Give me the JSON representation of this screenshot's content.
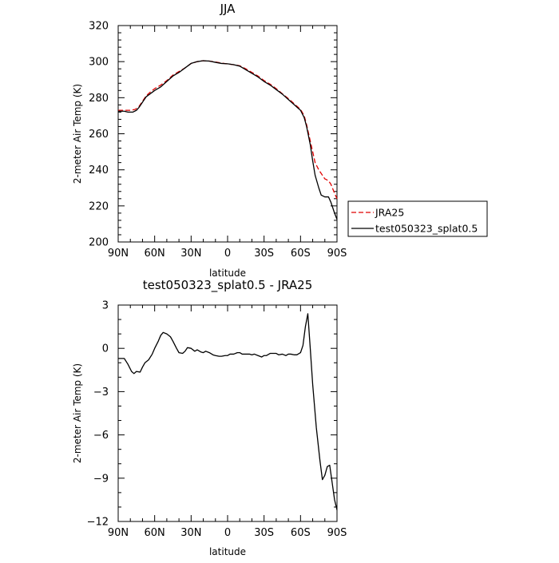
{
  "chart_data": [
    {
      "type": "line",
      "title": "JJA",
      "xlabel": "latitude",
      "ylabel": "2-meter Air Temp (K)",
      "xlim": [
        90,
        -90
      ],
      "ylim": [
        200,
        320
      ],
      "x_ticks": [
        90,
        60,
        30,
        0,
        -30,
        -60,
        -90
      ],
      "x_tick_labels": [
        "90N",
        "60N",
        "30N",
        "0",
        "30S",
        "60S",
        "90S"
      ],
      "y_ticks": [
        200,
        220,
        240,
        260,
        280,
        300,
        320
      ],
      "y_tick_labels": [
        "200",
        "220",
        "240",
        "260",
        "280",
        "300",
        "320"
      ],
      "grid": false,
      "legend_position": "outside-right",
      "series": [
        {
          "name": "JRA25",
          "color": "#e00000",
          "dash": "dashed",
          "points": [
            [
              90,
              273
            ],
            [
              85,
              273
            ],
            [
              80,
              273
            ],
            [
              76,
              273.5
            ],
            [
              73,
              275
            ],
            [
              70,
              278
            ],
            [
              67,
              281
            ],
            [
              63,
              283.5
            ],
            [
              60,
              285
            ],
            [
              55,
              287
            ],
            [
              50,
              289.5
            ],
            [
              45,
              292.5
            ],
            [
              40,
              294.5
            ],
            [
              35,
              296.5
            ],
            [
              30,
              299
            ],
            [
              25,
              300
            ],
            [
              20,
              300.5
            ],
            [
              15,
              300.3
            ],
            [
              10,
              299.8
            ],
            [
              5,
              299.2
            ],
            [
              0,
              298.7
            ],
            [
              -5,
              298.3
            ],
            [
              -10,
              297.7
            ],
            [
              -15,
              296
            ],
            [
              -20,
              294
            ],
            [
              -25,
              292
            ],
            [
              -30,
              289.5
            ],
            [
              -35,
              287.5
            ],
            [
              -40,
              285
            ],
            [
              -45,
              282.2
            ],
            [
              -50,
              279.5
            ],
            [
              -55,
              276.5
            ],
            [
              -60,
              273.5
            ],
            [
              -63,
              270
            ],
            [
              -65,
              265
            ],
            [
              -68,
              256
            ],
            [
              -70,
              250
            ],
            [
              -72,
              244
            ],
            [
              -75,
              240
            ],
            [
              -78,
              237
            ],
            [
              -80,
              235
            ],
            [
              -83,
              234
            ],
            [
              -85,
              232
            ],
            [
              -88,
              227
            ],
            [
              -90,
              224
            ]
          ]
        },
        {
          "name": "test050323_splat0.5",
          "color": "#000000",
          "dash": "solid",
          "points": [
            [
              90,
              272.5
            ],
            [
              85,
              272.5
            ],
            [
              82,
              272
            ],
            [
              78,
              272
            ],
            [
              75,
              273
            ],
            [
              73,
              274.5
            ],
            [
              70,
              277.5
            ],
            [
              67,
              280.5
            ],
            [
              63,
              282.5
            ],
            [
              60,
              284
            ],
            [
              55,
              286
            ],
            [
              50,
              289
            ],
            [
              45,
              292
            ],
            [
              40,
              294
            ],
            [
              35,
              296.5
            ],
            [
              30,
              299
            ],
            [
              25,
              300
            ],
            [
              20,
              300.5
            ],
            [
              15,
              300.3
            ],
            [
              10,
              299.6
            ],
            [
              5,
              299
            ],
            [
              0,
              298.8
            ],
            [
              -5,
              298.3
            ],
            [
              -10,
              297.5
            ],
            [
              -15,
              295.5
            ],
            [
              -20,
              293.5
            ],
            [
              -25,
              291.5
            ],
            [
              -30,
              289
            ],
            [
              -35,
              287
            ],
            [
              -40,
              284.5
            ],
            [
              -45,
              282
            ],
            [
              -50,
              279
            ],
            [
              -55,
              276
            ],
            [
              -60,
              273
            ],
            [
              -63,
              269
            ],
            [
              -65,
              264
            ],
            [
              -68,
              254
            ],
            [
              -70,
              245
            ],
            [
              -72,
              237
            ],
            [
              -75,
              230
            ],
            [
              -77,
              226
            ],
            [
              -80,
              225
            ],
            [
              -83,
              225
            ],
            [
              -85,
              222
            ],
            [
              -88,
              216
            ],
            [
              -90,
              212.5
            ]
          ]
        }
      ]
    },
    {
      "type": "line",
      "title": "test050323_splat0.5 - JRA25",
      "xlabel": "latitude",
      "ylabel": "2-meter Air Temp (K)",
      "xlim": [
        90,
        -90
      ],
      "ylim": [
        -12,
        3
      ],
      "x_ticks": [
        90,
        60,
        30,
        0,
        -30,
        -60,
        -90
      ],
      "x_tick_labels": [
        "90N",
        "60N",
        "30N",
        "0",
        "30S",
        "60S",
        "90S"
      ],
      "y_ticks": [
        -12,
        -9,
        -6,
        -3,
        0,
        3
      ],
      "y_tick_labels": [
        "−12",
        "−9",
        "−6",
        "−3",
        "0",
        "3"
      ],
      "grid": false,
      "series": [
        {
          "color": "#000000",
          "dash": "solid",
          "points": [
            [
              90,
              -0.7
            ],
            [
              85,
              -0.7
            ],
            [
              82,
              -1.1
            ],
            [
              79,
              -1.6
            ],
            [
              77,
              -1.75
            ],
            [
              75,
              -1.6
            ],
            [
              72,
              -1.65
            ],
            [
              70,
              -1.3
            ],
            [
              68,
              -1
            ],
            [
              65,
              -0.8
            ],
            [
              62,
              -0.4
            ],
            [
              60,
              0
            ],
            [
              57,
              0.5
            ],
            [
              55,
              0.9
            ],
            [
              53,
              1.1
            ],
            [
              50,
              1
            ],
            [
              47,
              0.8
            ],
            [
              45,
              0.5
            ],
            [
              42,
              0
            ],
            [
              40,
              -0.3
            ],
            [
              37,
              -0.35
            ],
            [
              35,
              -0.2
            ],
            [
              33,
              0.05
            ],
            [
              30,
              0
            ],
            [
              27,
              -0.2
            ],
            [
              25,
              -0.1
            ],
            [
              22,
              -0.25
            ],
            [
              20,
              -0.3
            ],
            [
              18,
              -0.2
            ],
            [
              15,
              -0.3
            ],
            [
              12,
              -0.45
            ],
            [
              10,
              -0.5
            ],
            [
              7,
              -0.55
            ],
            [
              5,
              -0.55
            ],
            [
              2,
              -0.5
            ],
            [
              0,
              -0.5
            ],
            [
              -2,
              -0.4
            ],
            [
              -5,
              -0.4
            ],
            [
              -8,
              -0.3
            ],
            [
              -10,
              -0.3
            ],
            [
              -12,
              -0.4
            ],
            [
              -15,
              -0.4
            ],
            [
              -18,
              -0.4
            ],
            [
              -20,
              -0.45
            ],
            [
              -22,
              -0.4
            ],
            [
              -25,
              -0.5
            ],
            [
              -28,
              -0.6
            ],
            [
              -30,
              -0.5
            ],
            [
              -32,
              -0.5
            ],
            [
              -35,
              -0.35
            ],
            [
              -37,
              -0.35
            ],
            [
              -40,
              -0.35
            ],
            [
              -42,
              -0.45
            ],
            [
              -45,
              -0.4
            ],
            [
              -48,
              -0.5
            ],
            [
              -50,
              -0.4
            ],
            [
              -52,
              -0.4
            ],
            [
              -55,
              -0.45
            ],
            [
              -57,
              -0.45
            ],
            [
              -60,
              -0.3
            ],
            [
              -62,
              0.2
            ],
            [
              -64,
              1.5
            ],
            [
              -66,
              2.4
            ],
            [
              -68,
              0
            ],
            [
              -70,
              -2.5
            ],
            [
              -73,
              -5.5
            ],
            [
              -76,
              -7.8
            ],
            [
              -78,
              -9.1
            ],
            [
              -80,
              -8.8
            ],
            [
              -82,
              -8.2
            ],
            [
              -84,
              -8.1
            ],
            [
              -86,
              -9.3
            ],
            [
              -88,
              -10.5
            ],
            [
              -90,
              -11.2
            ]
          ]
        }
      ]
    }
  ]
}
